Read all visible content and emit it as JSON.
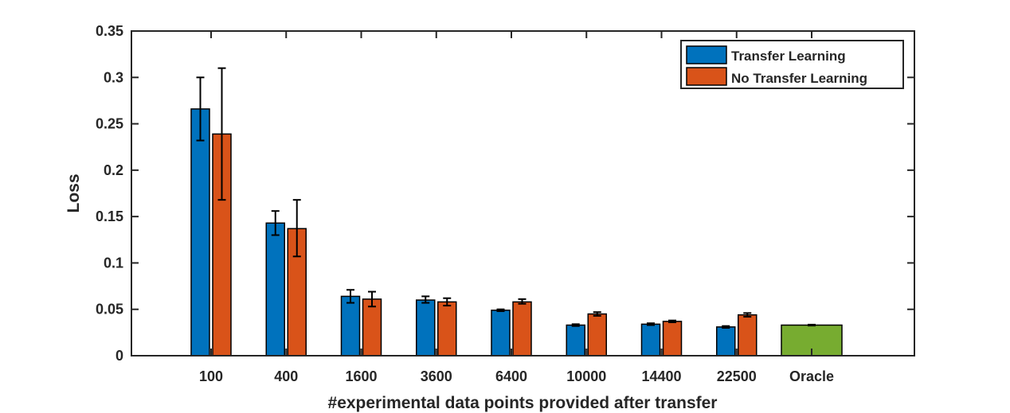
{
  "chart_data": {
    "type": "bar",
    "xlabel": "#experimental data points provided after transfer",
    "ylabel": "Loss",
    "ylim": [
      0,
      0.35
    ],
    "yticks": [
      0,
      0.05,
      0.1,
      0.15,
      0.2,
      0.25,
      0.3,
      0.35
    ],
    "ytick_labels": [
      "0",
      "0.05",
      "0.1",
      "0.15",
      "0.2",
      "0.25",
      "0.3",
      "0.35"
    ],
    "categories": [
      "100",
      "400",
      "1600",
      "3600",
      "6400",
      "10000",
      "14400",
      "22500",
      "Oracle"
    ],
    "series": [
      {
        "name": "Transfer Learning",
        "color": "#0072BD",
        "values": [
          0.266,
          0.143,
          0.064,
          0.06,
          0.049,
          0.033,
          0.034,
          0.031,
          null
        ],
        "err_low": [
          0.232,
          0.13,
          0.057,
          0.057,
          0.048,
          0.032,
          0.033,
          0.03,
          null
        ],
        "err_high": [
          0.3,
          0.156,
          0.071,
          0.064,
          0.05,
          0.034,
          0.035,
          0.032,
          null
        ]
      },
      {
        "name": "No Transfer Learning",
        "color": "#D95319",
        "values": [
          0.239,
          0.137,
          0.061,
          0.058,
          0.058,
          0.045,
          0.037,
          0.044,
          null
        ],
        "err_low": [
          0.168,
          0.107,
          0.053,
          0.054,
          0.056,
          0.043,
          0.036,
          0.042,
          null
        ],
        "err_high": [
          0.31,
          0.168,
          0.069,
          0.062,
          0.061,
          0.047,
          0.038,
          0.046,
          null
        ]
      },
      {
        "name": "",
        "color": "#77AC30",
        "values": [
          null,
          null,
          null,
          null,
          null,
          null,
          null,
          null,
          0.033
        ],
        "err_low": [
          null,
          null,
          null,
          null,
          null,
          null,
          null,
          null,
          0.0325
        ],
        "err_high": [
          null,
          null,
          null,
          null,
          null,
          null,
          null,
          null,
          0.0335
        ]
      }
    ],
    "legend": {
      "location": "top-right",
      "entries": [
        "Transfer Learning",
        "No Transfer Learning"
      ]
    },
    "grid": false
  }
}
